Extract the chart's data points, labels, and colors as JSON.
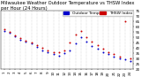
{
  "title": "Milwaukee Weather Outdoor Temperature vs THSW Index per Hour (24 Hours)",
  "legend_labels": [
    "Outdoor Temp",
    "THSW Index"
  ],
  "legend_colors": [
    "#0000cc",
    "#cc0000"
  ],
  "hours": [
    1,
    2,
    3,
    4,
    5,
    6,
    7,
    8,
    9,
    10,
    11,
    12,
    13,
    14,
    15,
    16,
    17,
    18,
    19,
    20,
    21,
    22,
    23,
    24
  ],
  "outdoor_temp": [
    56,
    54,
    51,
    48,
    46,
    44,
    41,
    38,
    36,
    34,
    33,
    35,
    38,
    44,
    50,
    46,
    42,
    39,
    36,
    34,
    32,
    30,
    29,
    28
  ],
  "thsw_index": [
    58,
    55,
    52,
    49,
    47,
    45,
    43,
    40,
    38,
    36,
    36,
    38,
    45,
    53,
    56,
    50,
    46,
    43,
    39,
    36,
    34,
    32,
    65,
    30
  ],
  "ylim": [
    20,
    75
  ],
  "xlim": [
    0.5,
    24.5
  ],
  "bg_color": "#ffffff",
  "plot_bg": "#ffffff",
  "grid_color": "#aaaaaa",
  "dot_size": 2,
  "title_fontsize": 3.8,
  "tick_fontsize": 3.0,
  "legend_fontsize": 3.2
}
